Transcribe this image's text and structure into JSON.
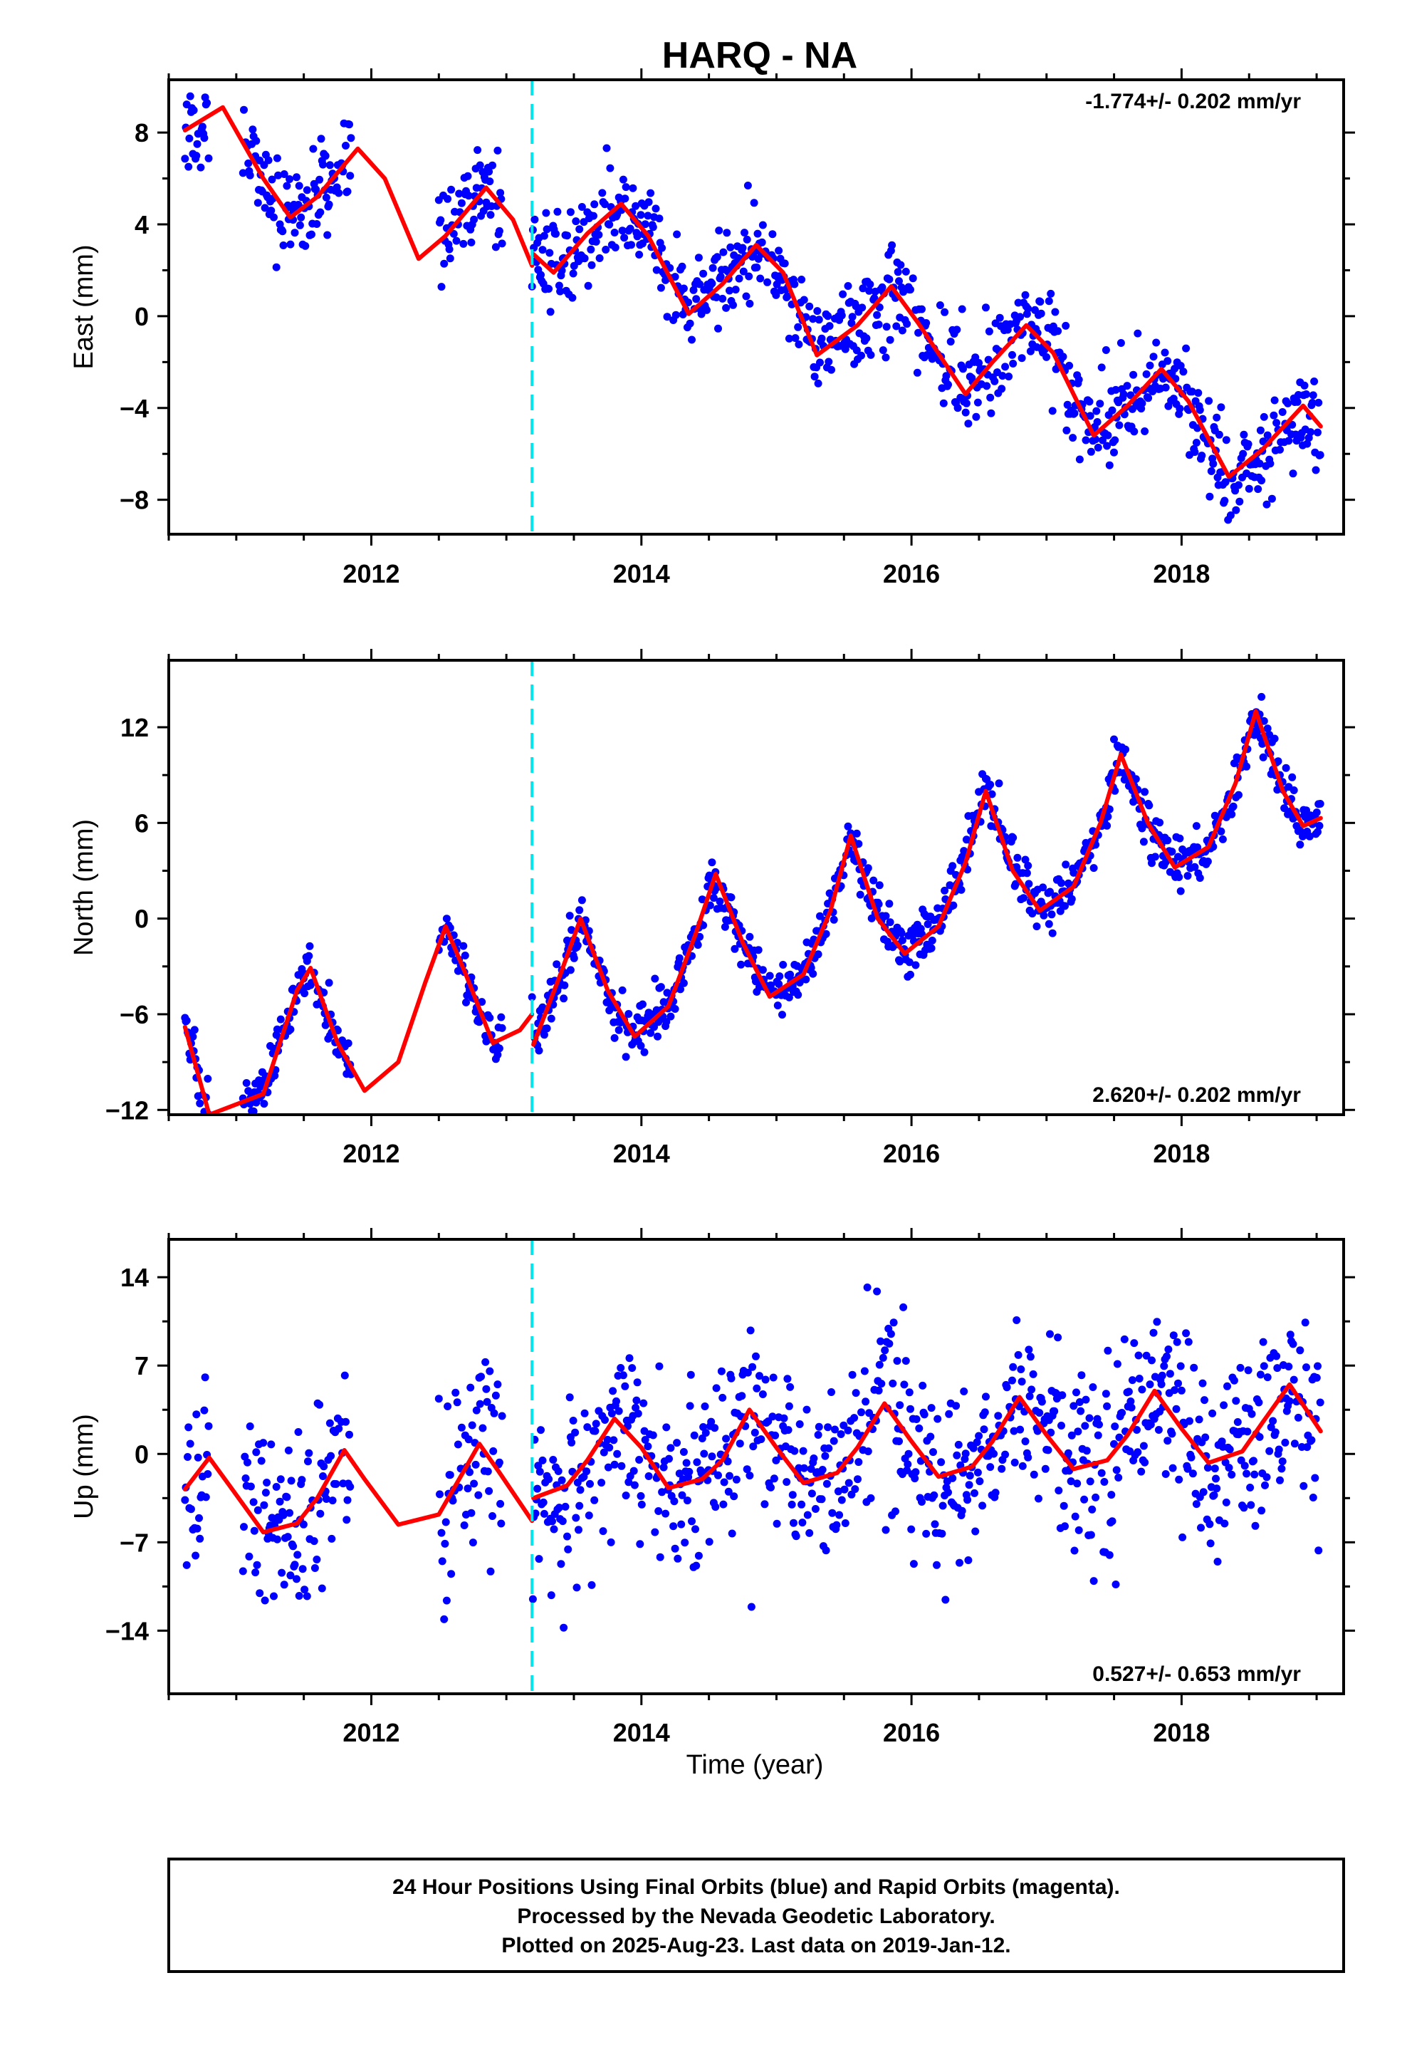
{
  "title": "HARQ - NA",
  "xlabel": "Time (year)",
  "caption": [
    "24 Hour Positions Using Final Orbits (blue) and Rapid Orbits (magenta).",
    "Processed by the Nevada Geodetic Laboratory.",
    "Plotted on 2025-Aug-23. Last data on 2019-Jan-12."
  ],
  "colors": {
    "points": "#0000ff",
    "model": "#ff0000",
    "offset_line": "#00e5ee",
    "frame": "#000000"
  },
  "chart_data": [
    {
      "type": "scatter",
      "component": "east",
      "ylabel": "East (mm)",
      "rate_label": "-1.774+/- 0.202 mm/yr",
      "rate_position": "top-right",
      "xlim": [
        2010.5,
        2019.2
      ],
      "ylim": [
        -9.5,
        10.3
      ],
      "x_ticks": [
        2012,
        2014,
        2016,
        2018
      ],
      "y_ticks": [
        -8,
        -4,
        0,
        4,
        8
      ],
      "grid": false,
      "offset_epoch": 2013.19,
      "series": [
        {
          "role": "points",
          "segments": [
            [
              2010.62,
              2010.8
            ],
            [
              2011.05,
              2011.85
            ],
            [
              2012.5,
              2012.97
            ],
            [
              2013.19,
              2019.03
            ]
          ],
          "trend": [
            [
              2010.62,
              8.0
            ],
            [
              2013.19,
              2.5
            ],
            [
              2013.2,
              2.0
            ],
            [
              2019.03,
              -4.8
            ]
          ],
          "annual_amplitude": 2.3,
          "annual_phase_peak": 0.9,
          "noise": 1.0
        },
        {
          "role": "model",
          "points": [
            [
              2010.62,
              8.1
            ],
            [
              2010.9,
              9.1
            ],
            [
              2011.2,
              6.0
            ],
            [
              2011.4,
              4.3
            ],
            [
              2011.6,
              5.2
            ],
            [
              2011.9,
              7.3
            ],
            [
              2012.1,
              6.0
            ],
            [
              2012.35,
              2.5
            ],
            [
              2012.55,
              3.5
            ],
            [
              2012.85,
              5.6
            ],
            [
              2013.05,
              4.2
            ],
            [
              2013.19,
              2.2
            ],
            [
              2013.2,
              2.7
            ],
            [
              2013.35,
              1.9
            ],
            [
              2013.6,
              3.6
            ],
            [
              2013.85,
              4.9
            ],
            [
              2014.05,
              3.5
            ],
            [
              2014.35,
              0.1
            ],
            [
              2014.6,
              1.4
            ],
            [
              2014.85,
              3.1
            ],
            [
              2015.05,
              1.9
            ],
            [
              2015.3,
              -1.7
            ],
            [
              2015.6,
              -0.4
            ],
            [
              2015.85,
              1.3
            ],
            [
              2016.05,
              -0.3
            ],
            [
              2016.4,
              -3.4
            ],
            [
              2016.6,
              -2.0
            ],
            [
              2016.85,
              -0.4
            ],
            [
              2017.05,
              -1.6
            ],
            [
              2017.35,
              -5.2
            ],
            [
              2017.6,
              -3.9
            ],
            [
              2017.85,
              -2.3
            ],
            [
              2018.05,
              -3.7
            ],
            [
              2018.35,
              -7.0
            ],
            [
              2018.6,
              -5.8
            ],
            [
              2018.9,
              -3.9
            ],
            [
              2019.03,
              -4.8
            ]
          ]
        }
      ]
    },
    {
      "type": "scatter",
      "component": "north",
      "ylabel": "North (mm)",
      "rate_label": "2.620+/- 0.202 mm/yr",
      "rate_position": "bottom-right",
      "xlim": [
        2010.5,
        2019.2
      ],
      "ylim": [
        -12.3,
        16.2
      ],
      "x_ticks": [
        2012,
        2014,
        2016,
        2018
      ],
      "y_ticks": [
        -12,
        -6,
        0,
        6,
        12
      ],
      "grid": false,
      "offset_epoch": 2013.19,
      "series": [
        {
          "role": "points",
          "segments": [
            [
              2010.62,
              2010.8
            ],
            [
              2011.05,
              2011.85
            ],
            [
              2012.5,
              2012.97
            ],
            [
              2013.19,
              2019.03
            ]
          ],
          "trend": [
            [
              2010.62,
              -6.5
            ],
            [
              2013.19,
              -6.5
            ],
            [
              2013.2,
              -7.5
            ],
            [
              2019.03,
              6.5
            ]
          ],
          "annual_amplitude": 4.2,
          "annual_phase_peak": 0.55,
          "noise": 0.8
        },
        {
          "role": "model",
          "points": [
            [
              2010.62,
              -6.8
            ],
            [
              2010.8,
              -12.3
            ],
            [
              2011.2,
              -11.0
            ],
            [
              2011.45,
              -4.5
            ],
            [
              2011.55,
              -3.1
            ],
            [
              2011.75,
              -7.8
            ],
            [
              2011.95,
              -10.8
            ],
            [
              2012.2,
              -9.0
            ],
            [
              2012.4,
              -4.0
            ],
            [
              2012.55,
              -0.5
            ],
            [
              2012.7,
              -3.5
            ],
            [
              2012.9,
              -7.8
            ],
            [
              2013.1,
              -7.0
            ],
            [
              2013.19,
              -6.0
            ],
            [
              2013.2,
              -7.9
            ],
            [
              2013.4,
              -3.5
            ],
            [
              2013.55,
              0.0
            ],
            [
              2013.75,
              -4.5
            ],
            [
              2013.95,
              -7.4
            ],
            [
              2014.2,
              -5.5
            ],
            [
              2014.4,
              -1.0
            ],
            [
              2014.55,
              2.8
            ],
            [
              2014.75,
              -1.5
            ],
            [
              2014.95,
              -4.9
            ],
            [
              2015.2,
              -3.5
            ],
            [
              2015.4,
              0.5
            ],
            [
              2015.55,
              5.2
            ],
            [
              2015.75,
              0.0
            ],
            [
              2015.95,
              -2.2
            ],
            [
              2016.2,
              -0.5
            ],
            [
              2016.4,
              3.5
            ],
            [
              2016.55,
              8.0
            ],
            [
              2016.75,
              3.0
            ],
            [
              2016.95,
              0.5
            ],
            [
              2017.2,
              2.0
            ],
            [
              2017.4,
              6.0
            ],
            [
              2017.55,
              10.3
            ],
            [
              2017.75,
              6.0
            ],
            [
              2017.95,
              3.2
            ],
            [
              2018.2,
              4.5
            ],
            [
              2018.4,
              8.5
            ],
            [
              2018.55,
              13.0
            ],
            [
              2018.75,
              8.0
            ],
            [
              2018.9,
              5.8
            ],
            [
              2019.03,
              6.3
            ]
          ]
        }
      ]
    },
    {
      "type": "scatter",
      "component": "up",
      "ylabel": "Up (mm)",
      "rate_label": "0.527+/- 0.653 mm/yr",
      "rate_position": "bottom-right",
      "xlim": [
        2010.5,
        2019.2
      ],
      "ylim": [
        -19.0,
        17.0
      ],
      "x_ticks": [
        2012,
        2014,
        2016,
        2018
      ],
      "y_ticks": [
        -14,
        -7,
        0,
        7,
        14
      ],
      "grid": false,
      "offset_epoch": 2013.19,
      "series": [
        {
          "role": "points",
          "segments": [
            [
              2010.62,
              2010.8
            ],
            [
              2011.05,
              2011.85
            ],
            [
              2012.5,
              2012.97
            ],
            [
              2013.19,
              2019.03
            ]
          ],
          "trend": [
            [
              2010.62,
              -3.0
            ],
            [
              2013.19,
              -2.0
            ],
            [
              2013.2,
              -1.0
            ],
            [
              2019.03,
              2.0
            ]
          ],
          "annual_amplitude": 3.2,
          "annual_phase_peak": 0.8,
          "noise": 3.8
        },
        {
          "role": "model",
          "points": [
            [
              2010.62,
              -2.8
            ],
            [
              2010.8,
              -0.3
            ],
            [
              2010.95,
              -2.5
            ],
            [
              2011.2,
              -6.2
            ],
            [
              2011.45,
              -5.5
            ],
            [
              2011.6,
              -3.5
            ],
            [
              2011.8,
              0.3
            ],
            [
              2011.95,
              -2.0
            ],
            [
              2012.2,
              -5.6
            ],
            [
              2012.5,
              -4.8
            ],
            [
              2012.65,
              -2.0
            ],
            [
              2012.8,
              0.8
            ],
            [
              2012.95,
              -1.5
            ],
            [
              2013.19,
              -5.3
            ],
            [
              2013.2,
              -3.5
            ],
            [
              2013.45,
              -2.5
            ],
            [
              2013.6,
              -0.5
            ],
            [
              2013.8,
              2.8
            ],
            [
              2014.0,
              0.5
            ],
            [
              2014.2,
              -2.7
            ],
            [
              2014.45,
              -2.0
            ],
            [
              2014.6,
              -0.5
            ],
            [
              2014.8,
              3.5
            ],
            [
              2015.0,
              0.5
            ],
            [
              2015.2,
              -2.3
            ],
            [
              2015.45,
              -1.5
            ],
            [
              2015.6,
              0.5
            ],
            [
              2015.8,
              4.0
            ],
            [
              2016.0,
              1.0
            ],
            [
              2016.2,
              -1.8
            ],
            [
              2016.45,
              -1.0
            ],
            [
              2016.6,
              1.0
            ],
            [
              2016.8,
              4.5
            ],
            [
              2017.0,
              1.5
            ],
            [
              2017.2,
              -1.2
            ],
            [
              2017.45,
              -0.5
            ],
            [
              2017.6,
              1.5
            ],
            [
              2017.8,
              5.0
            ],
            [
              2018.0,
              2.0
            ],
            [
              2018.2,
              -0.7
            ],
            [
              2018.45,
              0.2
            ],
            [
              2018.6,
              2.5
            ],
            [
              2018.8,
              5.5
            ],
            [
              2019.03,
              1.8
            ]
          ]
        }
      ]
    }
  ]
}
